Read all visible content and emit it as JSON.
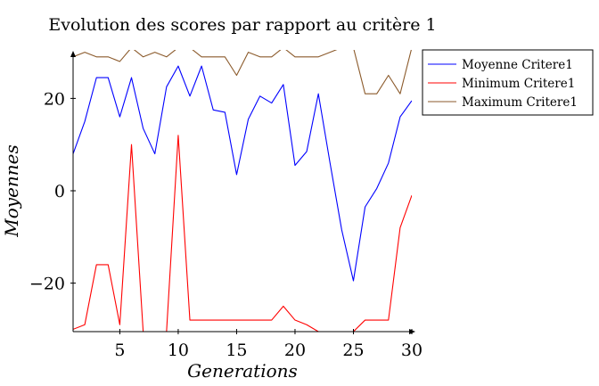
{
  "chart_data": {
    "type": "line",
    "title": "Evolution des scores par rapport au critère 1",
    "xlabel": "Generations",
    "ylabel": "Moyennes",
    "xlim": [
      1,
      30
    ],
    "ylim": [
      -30.5,
      30.5
    ],
    "xticks": [
      "5",
      "10",
      "15",
      "20",
      "25",
      "30"
    ],
    "yticks": [
      "−20",
      "0",
      "20"
    ],
    "xtick_values": [
      5,
      10,
      15,
      20,
      25,
      30
    ],
    "ytick_values": [
      -20,
      0,
      20
    ],
    "grid": false,
    "legend_position": "outside-right",
    "x": [
      1,
      2,
      3,
      4,
      5,
      6,
      7,
      8,
      9,
      10,
      11,
      12,
      13,
      14,
      15,
      16,
      17,
      18,
      19,
      20,
      21,
      22,
      23,
      24,
      25,
      26,
      27,
      28,
      29,
      30
    ],
    "series": [
      {
        "name": "Moyenne Critere1",
        "color": "#0000ff",
        "values": [
          8,
          15,
          24.5,
          24.5,
          16,
          24.5,
          13.5,
          8,
          22.5,
          27,
          20.5,
          27,
          17.5,
          17,
          3.5,
          15.5,
          20.5,
          19,
          23,
          5.5,
          8.5,
          21,
          6,
          -8.5,
          -19.5,
          -3.5,
          0.5,
          6,
          16,
          19.5
        ]
      },
      {
        "name": "Minimum Critere1",
        "color": "#ff0000",
        "values": [
          -30,
          -29,
          -16,
          -16,
          -29,
          10,
          -30.5,
          -30.5,
          -30.5,
          12,
          -28,
          -28,
          -28,
          -28,
          -28,
          -28,
          -28,
          -28,
          -25,
          -28,
          -29,
          -30.5,
          -30.5,
          -30.5,
          -30.5,
          -28,
          -28,
          -28,
          -8,
          -1
        ]
      },
      {
        "name": "Maximum Critere1",
        "color": "#8b5a2b",
        "values": [
          29,
          30,
          29,
          29,
          28,
          31,
          29,
          30,
          29,
          31,
          31,
          29,
          29,
          29,
          25,
          30,
          29,
          29,
          31,
          29,
          29,
          29,
          30,
          31,
          31,
          21,
          21,
          25,
          21,
          31
        ]
      }
    ]
  }
}
